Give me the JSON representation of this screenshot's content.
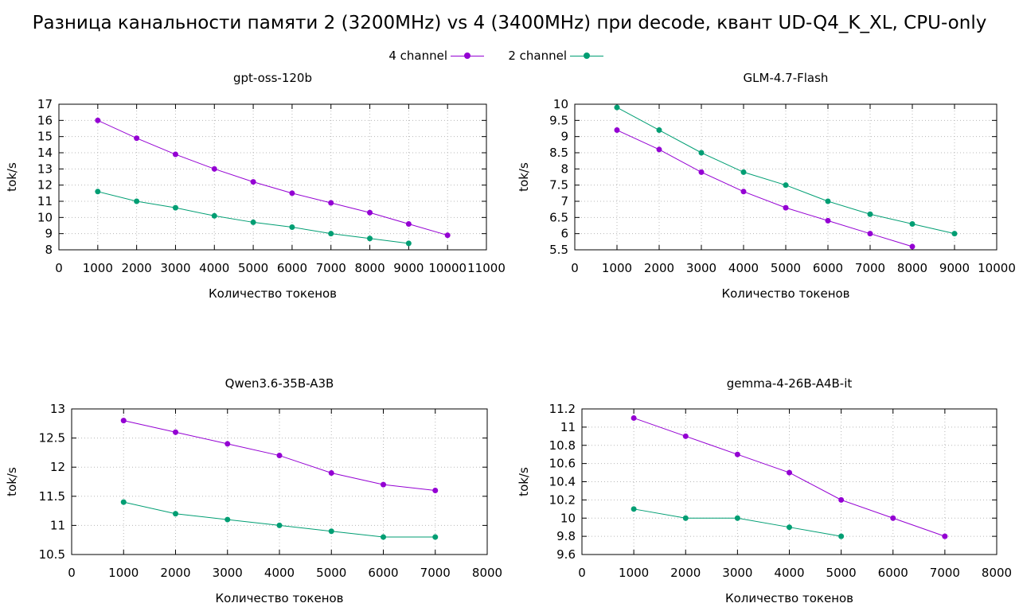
{
  "title": "Разница канальности памяти 2 (3200MHz) vs 4 (3400MHz) при decode, квант UD-Q4_K_XL, CPU-only",
  "legend": [
    {
      "label": "4 channel",
      "color": "#9400d3"
    },
    {
      "label": "2 channel",
      "color": "#009e73"
    }
  ],
  "chart_data": [
    {
      "type": "line",
      "title": "gpt-oss-120b",
      "xlabel": "Количество токенов",
      "ylabel": "tok/s",
      "xlim": [
        0,
        11000
      ],
      "ylim": [
        8,
        17
      ],
      "xticks": [
        0,
        1000,
        2000,
        3000,
        4000,
        5000,
        6000,
        7000,
        8000,
        9000,
        10000,
        11000
      ],
      "yticks": [
        8,
        9,
        10,
        11,
        12,
        13,
        14,
        15,
        16,
        17
      ],
      "grid": true,
      "series": [
        {
          "name": "4 channel",
          "x": [
            1000,
            2000,
            3000,
            4000,
            5000,
            6000,
            7000,
            8000,
            9000,
            10000
          ],
          "y": [
            16,
            14.9,
            13.9,
            13,
            12.2,
            11.5,
            10.9,
            10.3,
            9.6,
            8.9
          ]
        },
        {
          "name": "2 channel",
          "x": [
            1000,
            2000,
            3000,
            4000,
            5000,
            6000,
            7000,
            8000,
            9000
          ],
          "y": [
            11.6,
            11,
            10.6,
            10.1,
            9.7,
            9.4,
            9,
            8.7,
            8.4
          ]
        }
      ]
    },
    {
      "type": "line",
      "title": "GLM-4.7-Flash",
      "xlabel": "Количество токенов",
      "ylabel": "tok/s",
      "xlim": [
        0,
        10000
      ],
      "ylim": [
        5.5,
        10
      ],
      "xticks": [
        0,
        1000,
        2000,
        3000,
        4000,
        5000,
        6000,
        7000,
        8000,
        9000,
        10000
      ],
      "yticks": [
        5.5,
        6,
        6.5,
        7,
        7.5,
        8,
        8.5,
        9,
        9.5,
        10
      ],
      "grid": true,
      "series": [
        {
          "name": "4 channel",
          "x": [
            1000,
            2000,
            3000,
            4000,
            5000,
            6000,
            7000,
            8000
          ],
          "y": [
            9.2,
            8.6,
            7.9,
            7.3,
            6.8,
            6.4,
            6,
            5.6
          ]
        },
        {
          "name": "2 channel",
          "x": [
            1000,
            2000,
            3000,
            4000,
            5000,
            6000,
            7000,
            8000,
            9000
          ],
          "y": [
            9.9,
            9.2,
            8.5,
            7.9,
            7.5,
            7,
            6.6,
            6.3,
            6
          ]
        }
      ]
    },
    {
      "type": "line",
      "title": "Qwen3.6-35B-A3B",
      "xlabel": "Количество токенов",
      "ylabel": "tok/s",
      "xlim": [
        0,
        8000
      ],
      "ylim": [
        10.5,
        13
      ],
      "xticks": [
        0,
        1000,
        2000,
        3000,
        4000,
        5000,
        6000,
        7000,
        8000
      ],
      "yticks": [
        10.5,
        11,
        11.5,
        12,
        12.5,
        13
      ],
      "grid": true,
      "series": [
        {
          "name": "4 channel",
          "x": [
            1000,
            2000,
            3000,
            4000,
            5000,
            6000,
            7000
          ],
          "y": [
            12.8,
            12.6,
            12.4,
            12.2,
            11.9,
            11.7,
            11.6
          ]
        },
        {
          "name": "2 channel",
          "x": [
            1000,
            2000,
            3000,
            4000,
            5000,
            6000,
            7000
          ],
          "y": [
            11.4,
            11.2,
            11.1,
            11,
            10.9,
            10.8,
            10.8
          ]
        }
      ]
    },
    {
      "type": "line",
      "title": "gemma-4-26B-A4B-it",
      "xlabel": "Количество токенов",
      "ylabel": "tok/s",
      "xlim": [
        0,
        8000
      ],
      "ylim": [
        9.6,
        11.2
      ],
      "xticks": [
        0,
        1000,
        2000,
        3000,
        4000,
        5000,
        6000,
        7000,
        8000
      ],
      "yticks": [
        9.6,
        9.8,
        10,
        10.2,
        10.4,
        10.6,
        10.8,
        11,
        11.2
      ],
      "grid": true,
      "series": [
        {
          "name": "4 channel",
          "x": [
            1000,
            2000,
            3000,
            4000,
            5000,
            6000,
            7000
          ],
          "y": [
            11.1,
            10.9,
            10.7,
            10.5,
            10.2,
            10,
            9.8
          ]
        },
        {
          "name": "2 channel",
          "x": [
            1000,
            2000,
            3000,
            4000,
            5000
          ],
          "y": [
            10.1,
            10,
            10,
            9.9,
            9.8
          ]
        }
      ]
    }
  ]
}
